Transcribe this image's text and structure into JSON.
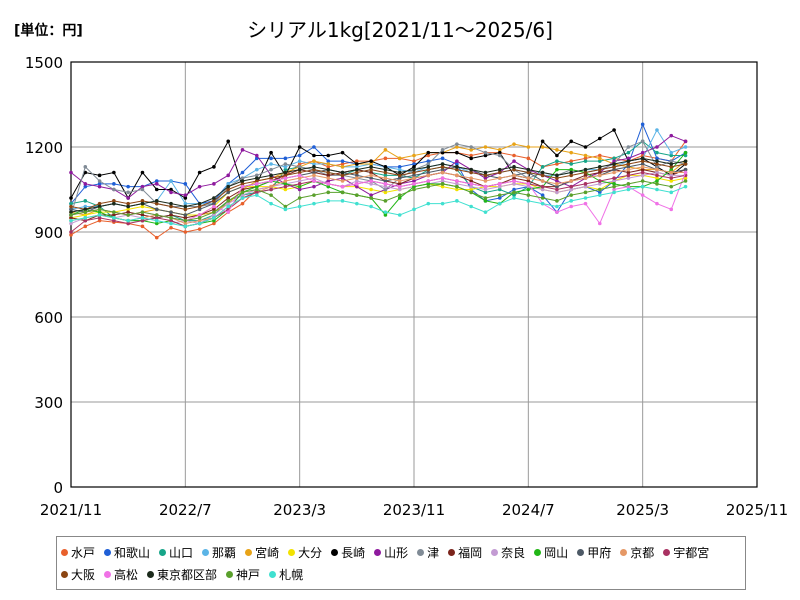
{
  "unit_label": "[単位：円]",
  "chart_data": {
    "type": "line",
    "title": "シリアル1kg[2021/11～2025/6]",
    "xlabel": "",
    "ylabel": "",
    "ylim": [
      0,
      1500
    ],
    "yticks": [
      0,
      300,
      600,
      900,
      1200,
      1500
    ],
    "xlim": [
      "2021/11",
      "2025/11"
    ],
    "xticks": [
      "2021/11",
      "2022/7",
      "2023/3",
      "2023/11",
      "2024/7",
      "2025/3",
      "2025/11"
    ],
    "grid": true,
    "legend_position": "bottom",
    "x": [
      "2021/11",
      "2021/12",
      "2022/1",
      "2022/2",
      "2022/3",
      "2022/4",
      "2022/5",
      "2022/6",
      "2022/7",
      "2022/8",
      "2022/9",
      "2022/10",
      "2022/11",
      "2022/12",
      "2023/1",
      "2023/2",
      "2023/3",
      "2023/4",
      "2023/5",
      "2023/6",
      "2023/7",
      "2023/8",
      "2023/9",
      "2023/10",
      "2023/11",
      "2023/12",
      "2024/1",
      "2024/2",
      "2024/3",
      "2024/4",
      "2024/5",
      "2024/6",
      "2024/7",
      "2024/8",
      "2024/9",
      "2024/10",
      "2024/11",
      "2024/12",
      "2025/1",
      "2025/2",
      "2025/3",
      "2025/4",
      "2025/5",
      "2025/6"
    ],
    "series": [
      {
        "name": "水戸",
        "color": "#e8602c",
        "values": [
          890,
          920,
          940,
          935,
          930,
          920,
          880,
          915,
          900,
          910,
          930,
          970,
          1000,
          1050,
          1060,
          1100,
          1140,
          1150,
          1130,
          1140,
          1150,
          1150,
          1160,
          1160,
          1150,
          1170,
          1180,
          1180,
          1170,
          1180,
          1180,
          1170,
          1160,
          1130,
          1140,
          1150,
          1160,
          1170,
          1160,
          1150,
          1170,
          1160,
          1150,
          1220
        ]
      },
      {
        "name": "和歌山",
        "color": "#1f5fd6",
        "values": [
          1000,
          1060,
          1070,
          1070,
          1060,
          1060,
          1080,
          1080,
          1070,
          1000,
          1010,
          1070,
          1110,
          1160,
          1160,
          1160,
          1170,
          1200,
          1150,
          1150,
          1140,
          1140,
          1130,
          1130,
          1140,
          1150,
          1160,
          1140,
          1050,
          1010,
          1020,
          1050,
          1060,
          1030,
          970,
          1050,
          1060,
          1040,
          1080,
          1140,
          1280,
          1160,
          1150,
          1180
        ]
      },
      {
        "name": "山口",
        "color": "#17a589",
        "values": [
          1000,
          1010,
          990,
          950,
          940,
          940,
          950,
          960,
          940,
          940,
          960,
          1010,
          1030,
          1040,
          1050,
          1120,
          1130,
          1120,
          1110,
          1100,
          1120,
          1110,
          1100,
          1100,
          1090,
          1120,
          1130,
          1120,
          1060,
          1040,
          1050,
          1030,
          1060,
          1130,
          1150,
          1140,
          1150,
          1150,
          1160,
          1180,
          1220,
          1180,
          1170,
          1170
        ]
      },
      {
        "name": "那覇",
        "color": "#5bb4e6",
        "values": [
          980,
          990,
          990,
          1000,
          990,
          1000,
          1010,
          1080,
          1000,
          1000,
          1000,
          1070,
          1090,
          1120,
          1140,
          1130,
          1150,
          1140,
          1140,
          1130,
          1130,
          1140,
          1130,
          1120,
          1110,
          1130,
          1140,
          1130,
          1110,
          1100,
          1110,
          1120,
          1110,
          1100,
          1100,
          1110,
          1120,
          1120,
          1130,
          1150,
          1160,
          1260,
          1180,
          1200
        ]
      },
      {
        "name": "宮崎",
        "color": "#e8a317",
        "values": [
          970,
          960,
          980,
          970,
          960,
          970,
          980,
          970,
          960,
          960,
          970,
          1000,
          1050,
          1080,
          1090,
          1110,
          1130,
          1150,
          1140,
          1130,
          1140,
          1140,
          1190,
          1160,
          1170,
          1180,
          1180,
          1200,
          1190,
          1200,
          1190,
          1210,
          1200,
          1200,
          1190,
          1180,
          1170,
          1160,
          1140,
          1130,
          1120,
          1120,
          1110,
          1150
        ]
      },
      {
        "name": "大分",
        "color": "#f2e200",
        "values": [
          950,
          960,
          970,
          970,
          980,
          990,
          980,
          970,
          960,
          960,
          990,
          1040,
          1060,
          1060,
          1060,
          1050,
          1060,
          1080,
          1070,
          1060,
          1060,
          1050,
          1040,
          1050,
          1060,
          1070,
          1060,
          1050,
          1050,
          1060,
          1060,
          1070,
          1070,
          1050,
          1040,
          1050,
          1060,
          1050,
          1080,
          1100,
          1100,
          1090,
          1080,
          1090
        ]
      },
      {
        "name": "長崎",
        "color": "#000000",
        "values": [
          1020,
          1110,
          1100,
          1110,
          1020,
          1110,
          1050,
          1050,
          1020,
          1110,
          1130,
          1220,
          1060,
          1070,
          1180,
          1100,
          1200,
          1170,
          1170,
          1180,
          1140,
          1150,
          1130,
          1100,
          1130,
          1180,
          1180,
          1180,
          1160,
          1170,
          1180,
          1100,
          1090,
          1220,
          1170,
          1220,
          1200,
          1230,
          1260,
          1150,
          1160,
          1130,
          1100,
          1140
        ]
      },
      {
        "name": "山形",
        "color": "#8e1a9e",
        "values": [
          1110,
          1070,
          1060,
          1050,
          1020,
          1060,
          1070,
          1040,
          1030,
          1060,
          1070,
          1100,
          1190,
          1170,
          1100,
          1070,
          1050,
          1060,
          1080,
          1090,
          1060,
          1030,
          1050,
          1070,
          1080,
          1100,
          1110,
          1150,
          1120,
          1090,
          1110,
          1150,
          1120,
          1100,
          1080,
          1060,
          1090,
          1110,
          1150,
          1160,
          1180,
          1200,
          1240,
          1220
        ]
      },
      {
        "name": "津",
        "color": "#808b96",
        "values": [
          960,
          1130,
          1080,
          1050,
          1040,
          1050,
          1000,
          990,
          990,
          990,
          1000,
          1060,
          1090,
          1100,
          1120,
          1140,
          1130,
          1120,
          1100,
          1100,
          1090,
          1080,
          1050,
          1090,
          1120,
          1140,
          1190,
          1210,
          1200,
          1180,
          1170,
          1120,
          1090,
          1110,
          1100,
          1120,
          1110,
          1120,
          1140,
          1200,
          1220,
          1130,
          1150,
          1140
        ]
      },
      {
        "name": "福岡",
        "color": "#7b241c",
        "values": [
          950,
          940,
          960,
          960,
          970,
          960,
          950,
          960,
          950,
          960,
          980,
          1020,
          1050,
          1060,
          1080,
          1100,
          1120,
          1110,
          1100,
          1110,
          1120,
          1110,
          1080,
          1070,
          1090,
          1100,
          1110,
          1100,
          1080,
          1060,
          1070,
          1090,
          1080,
          1060,
          1060,
          1080,
          1100,
          1110,
          1120,
          1110,
          1120,
          1110,
          1100,
          1120
        ]
      },
      {
        "name": "奈良",
        "color": "#c39bd3",
        "values": [
          930,
          950,
          960,
          950,
          960,
          950,
          940,
          930,
          940,
          930,
          960,
          1000,
          1030,
          1050,
          1060,
          1070,
          1080,
          1090,
          1070,
          1060,
          1080,
          1070,
          1060,
          1050,
          1060,
          1070,
          1080,
          1070,
          1060,
          1050,
          1060,
          1070,
          1060,
          1050,
          1040,
          1050,
          1060,
          1070,
          1080,
          1090,
          1100,
          1110,
          1100,
          1100
        ]
      },
      {
        "name": "岡山",
        "color": "#22b617",
        "values": [
          960,
          980,
          970,
          950,
          940,
          940,
          930,
          940,
          920,
          930,
          940,
          980,
          1040,
          1060,
          1080,
          1070,
          1060,
          1080,
          1060,
          1040,
          1030,
          1020,
          960,
          1020,
          1060,
          1070,
          1070,
          1060,
          1040,
          1010,
          1000,
          1040,
          1050,
          1060,
          1120,
          1120,
          1110,
          1080,
          1070,
          1060,
          1060,
          1080,
          1120,
          1180
        ]
      },
      {
        "name": "甲府",
        "color": "#4d5966",
        "values": [
          980,
          970,
          990,
          1000,
          990,
          1000,
          980,
          970,
          960,
          980,
          1000,
          1040,
          1060,
          1070,
          1080,
          1090,
          1100,
          1110,
          1120,
          1110,
          1100,
          1090,
          1080,
          1090,
          1100,
          1110,
          1120,
          1130,
          1120,
          1100,
          1090,
          1100,
          1110,
          1080,
          1060,
          1080,
          1090,
          1100,
          1120,
          1130,
          1140,
          1120,
          1110,
          1120
        ]
      },
      {
        "name": "京都",
        "color": "#e59866",
        "values": [
          940,
          950,
          960,
          950,
          940,
          950,
          960,
          950,
          930,
          940,
          950,
          990,
          1020,
          1040,
          1060,
          1080,
          1090,
          1100,
          1090,
          1080,
          1090,
          1100,
          1090,
          1080,
          1090,
          1100,
          1110,
          1100,
          1090,
          1080,
          1090,
          1100,
          1090,
          1080,
          1070,
          1080,
          1090,
          1100,
          1110,
          1120,
          1130,
          1120,
          1110,
          1110
        ]
      },
      {
        "name": "宇都宮",
        "color": "#a93262",
        "values": [
          900,
          940,
          950,
          940,
          930,
          940,
          950,
          940,
          920,
          930,
          950,
          980,
          1020,
          1040,
          1050,
          1060,
          1070,
          1080,
          1070,
          1060,
          1070,
          1080,
          1070,
          1060,
          1070,
          1080,
          1090,
          1080,
          1070,
          1060,
          1070,
          1080,
          1070,
          1060,
          1050,
          1060,
          1070,
          1080,
          1090,
          1100,
          1110,
          1100,
          1090,
          1100
        ]
      },
      {
        "name": "大阪",
        "color": "#8b4513",
        "values": [
          990,
          980,
          1000,
          1010,
          1000,
          1010,
          1000,
          990,
          980,
          990,
          1010,
          1050,
          1070,
          1080,
          1090,
          1100,
          1110,
          1120,
          1110,
          1100,
          1110,
          1120,
          1110,
          1100,
          1110,
          1120,
          1130,
          1120,
          1110,
          1100,
          1110,
          1120,
          1110,
          1100,
          1090,
          1100,
          1110,
          1120,
          1130,
          1140,
          1150,
          1140,
          1130,
          1140
        ]
      },
      {
        "name": "高松",
        "color": "#f072e6",
        "values": [
          960,
          970,
          980,
          970,
          960,
          970,
          960,
          950,
          940,
          960,
          990,
          970,
          1060,
          1070,
          1080,
          1090,
          1100,
          1080,
          1070,
          1060,
          1070,
          1080,
          1070,
          1060,
          1070,
          1080,
          1090,
          1080,
          1070,
          1060,
          1070,
          1080,
          1070,
          1000,
          970,
          990,
          1000,
          930,
          1050,
          1060,
          1030,
          1000,
          980,
          1110
        ]
      },
      {
        "name": "東京都区部",
        "color": "#1b2a1b",
        "values": [
          970,
          980,
          990,
          1000,
          990,
          1000,
          1010,
          1000,
          990,
          1000,
          1020,
          1060,
          1080,
          1090,
          1100,
          1110,
          1120,
          1130,
          1120,
          1110,
          1120,
          1130,
          1120,
          1110,
          1120,
          1130,
          1140,
          1130,
          1120,
          1110,
          1120,
          1130,
          1120,
          1110,
          1100,
          1110,
          1120,
          1130,
          1140,
          1150,
          1160,
          1150,
          1140,
          1150
        ]
      },
      {
        "name": "神戸",
        "color": "#5aa02c",
        "values": [
          960,
          970,
          980,
          970,
          960,
          970,
          960,
          950,
          940,
          950,
          970,
          1010,
          1040,
          1050,
          1030,
          990,
          1020,
          1030,
          1040,
          1040,
          1030,
          1020,
          1010,
          1030,
          1050,
          1060,
          1070,
          1060,
          1040,
          1020,
          1030,
          1040,
          1030,
          1020,
          1010,
          1030,
          1040,
          1050,
          1060,
          1070,
          1080,
          1070,
          1060,
          1080
        ]
      },
      {
        "name": "札幌",
        "color": "#40e0d0",
        "values": [
          940,
          950,
          960,
          950,
          940,
          950,
          940,
          930,
          920,
          930,
          950,
          990,
          1020,
          1030,
          1000,
          980,
          990,
          1000,
          1010,
          1010,
          1000,
          990,
          970,
          960,
          980,
          1000,
          1000,
          1010,
          990,
          970,
          1000,
          1020,
          1010,
          1000,
          990,
          1010,
          1020,
          1030,
          1040,
          1050,
          1060,
          1050,
          1040,
          1060
        ]
      }
    ]
  }
}
